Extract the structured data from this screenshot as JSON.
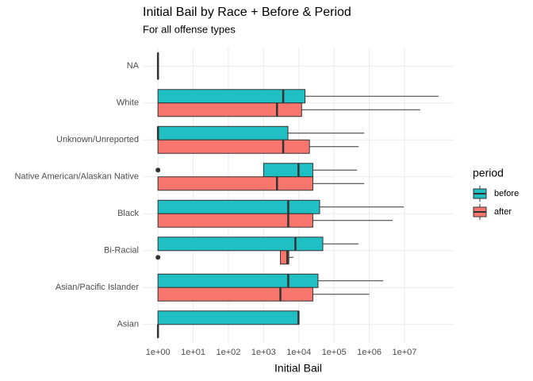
{
  "chart_data": {
    "type": "boxplot",
    "orientation": "horizontal",
    "title": "Initial Bail by Race + Before & Period",
    "subtitle": "For all offense types",
    "x_label": "Initial Bail",
    "legend_title": "period",
    "legend_position": "right",
    "log_x": true,
    "grid": true,
    "categories": [
      "NA",
      "White",
      "Unknown/Unreported",
      "Native American/Alaskan Native",
      "Black",
      "Bi-Racial",
      "Asian/Pacific Islander",
      "Asian"
    ],
    "xlim": [
      0.37,
      250000000
    ],
    "xticks": [
      {
        "value": 1,
        "label": "1e+00"
      },
      {
        "value": 10,
        "label": "1e+01"
      },
      {
        "value": 100,
        "label": "1e+02"
      },
      {
        "value": 1000,
        "label": "1e+03"
      },
      {
        "value": 10000,
        "label": "1e+04"
      },
      {
        "value": 100000,
        "label": "1e+05"
      },
      {
        "value": 1000000,
        "label": "1e+06"
      },
      {
        "value": 10000000,
        "label": "1e+07"
      }
    ],
    "series": [
      {
        "name": "before",
        "color": "#1fbfc3",
        "min": [
          1,
          1,
          1,
          1000,
          1,
          1,
          1,
          1
        ],
        "q1": [
          1,
          1,
          1,
          1000,
          1,
          1,
          1,
          1
        ],
        "median": [
          1,
          3600,
          1,
          9800,
          5000,
          8000,
          5000,
          9800
        ],
        "q3": [
          1,
          15000,
          4900,
          25000,
          39000,
          48000,
          35000,
          10000
        ],
        "max": [
          1,
          93000000,
          720000,
          450000,
          9600000,
          500000,
          2500000,
          10000
        ],
        "outliers": [
          [],
          [],
          [],
          [
            1
          ],
          [],
          [],
          [],
          []
        ]
      },
      {
        "name": "after",
        "color": "#f8766d",
        "min": [
          null,
          1,
          1,
          1,
          1,
          3000,
          1,
          1
        ],
        "q1": [
          null,
          1,
          1,
          1,
          1,
          3000,
          1,
          1
        ],
        "median": [
          null,
          2400,
          3600,
          2400,
          5000,
          4700,
          3000,
          1
        ],
        "q3": [
          null,
          12000,
          20000,
          25000,
          25000,
          5200,
          25000,
          1
        ],
        "max": [
          null,
          28000000,
          500000,
          720000,
          4600000,
          7000,
          1000000,
          1
        ],
        "outliers": [
          [],
          [],
          [],
          [],
          [],
          [
            1
          ],
          [],
          []
        ]
      }
    ]
  }
}
